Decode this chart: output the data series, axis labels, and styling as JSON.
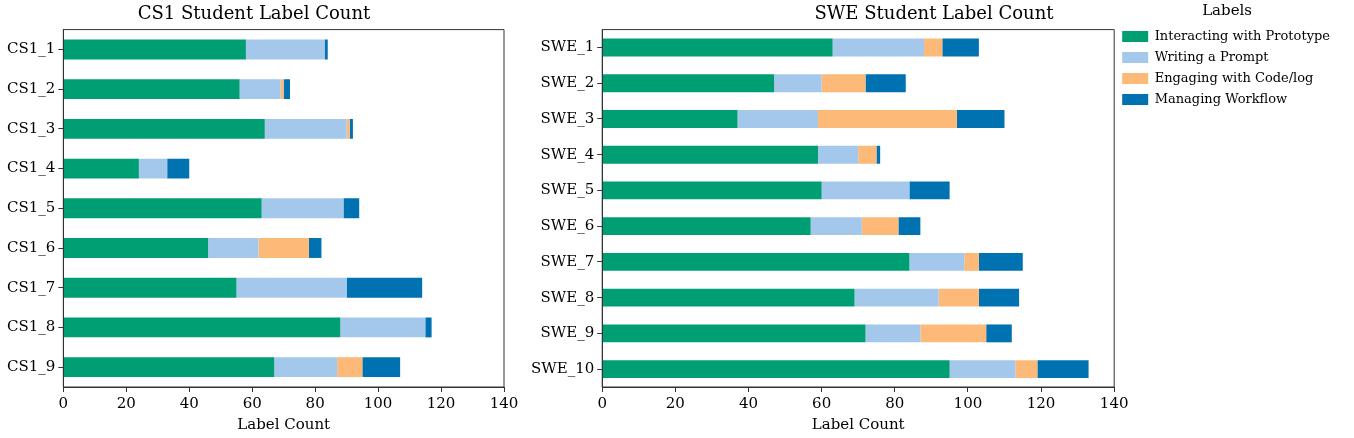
{
  "chart_data": [
    {
      "type": "bar",
      "orientation": "horizontal",
      "stacked": true,
      "title": "CS1 Student Label Count",
      "xlabel": "Label Count",
      "categories": [
        "CS1_1",
        "CS1_2",
        "CS1_3",
        "CS1_4",
        "CS1_5",
        "CS1_6",
        "CS1_7",
        "CS1_8",
        "CS1_9"
      ],
      "xlim": [
        0,
        140
      ],
      "xticks": [
        0,
        20,
        40,
        60,
        80,
        100,
        120,
        140
      ],
      "grid": false,
      "legend": false,
      "series": [
        {
          "color": "#009e73",
          "values": [
            58,
            56,
            64,
            24,
            63,
            46,
            55,
            88,
            67
          ]
        },
        {
          "color": "#a3c8ec",
          "values": [
            25,
            13,
            26,
            9,
            26,
            16,
            35,
            27,
            20
          ]
        },
        {
          "color": "#fdb978",
          "values": [
            0,
            1,
            1,
            0,
            0,
            16,
            0,
            0,
            8
          ]
        },
        {
          "color": "#0072b2",
          "values": [
            1,
            2,
            1,
            7,
            5,
            4,
            24,
            2,
            12
          ]
        }
      ]
    },
    {
      "type": "bar",
      "orientation": "horizontal",
      "stacked": true,
      "title": "SWE Student Label Count",
      "xlabel": "Label Count",
      "categories": [
        "SWE_1",
        "SWE_2",
        "SWE_3",
        "SWE_4",
        "SWE_5",
        "SWE_6",
        "SWE_7",
        "SWE_8",
        "SWE_9",
        "SWE_10"
      ],
      "xlim": [
        0,
        140
      ],
      "xticks": [
        0,
        20,
        40,
        60,
        80,
        100,
        120,
        140
      ],
      "grid": false,
      "legend": "right",
      "legend_title": "Labels",
      "series": [
        {
          "name": "Interacting with Prototype",
          "color": "#009e73",
          "values": [
            63,
            47,
            37,
            59,
            60,
            57,
            84,
            69,
            72,
            95
          ]
        },
        {
          "name": "Writing a Prompt",
          "color": "#a3c8ec",
          "values": [
            25,
            13,
            22,
            11,
            24,
            14,
            15,
            23,
            15,
            18
          ]
        },
        {
          "name": "Engaging with Code/log",
          "color": "#fdb978",
          "values": [
            5,
            12,
            38,
            5,
            0,
            10,
            4,
            11,
            18,
            6
          ]
        },
        {
          "name": "Managing Workflow",
          "color": "#0072b2",
          "values": [
            10,
            11,
            13,
            1,
            11,
            6,
            12,
            11,
            7,
            14
          ]
        }
      ]
    }
  ]
}
